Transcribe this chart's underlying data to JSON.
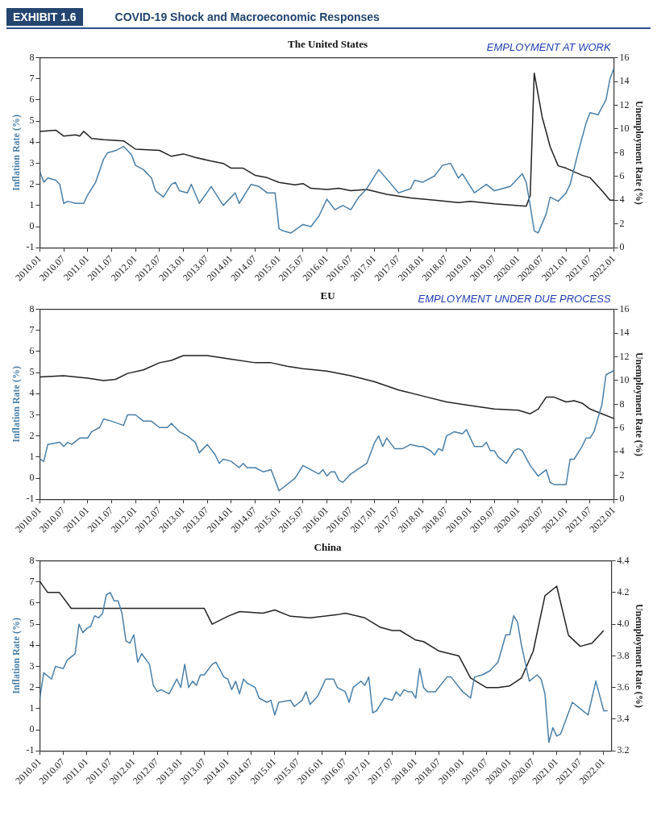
{
  "chart_data": [
    {
      "type": "other",
      "title": "COVID-19 Shock and Macroeconomic Responses",
      "annotations": [
        "EXHIBIT 1.6"
      ]
    },
    {
      "type": "line",
      "title": "The United States",
      "ylabel": "Inflation Rate (%)",
      "y2label": "Unemployment Rate (%)",
      "annotations": [
        "EMPLOYMENT AT WORK"
      ],
      "xlim": [
        "2010-01",
        "2022-01"
      ],
      "ylim": [
        -1,
        8
      ],
      "yticks": [
        -1,
        0,
        1,
        2,
        3,
        4,
        5,
        6,
        7,
        8
      ],
      "y2lim": [
        0,
        16
      ],
      "y2ticks": [
        0,
        2,
        4,
        6,
        8,
        10,
        12,
        14,
        16
      ],
      "xticks": [
        {
          "value": "2010-01",
          "label": "2010.01"
        },
        {
          "value": "2010-07",
          "label": "2010.07"
        },
        {
          "value": "2011-01",
          "label": "2011.01"
        },
        {
          "value": "2011-07",
          "label": "2011.07"
        },
        {
          "value": "2012-01",
          "label": "2012.01"
        },
        {
          "value": "2012-07",
          "label": "2012.07"
        },
        {
          "value": "2013-01",
          "label": "2013.01"
        },
        {
          "value": "2013-07",
          "label": "2013.07"
        },
        {
          "value": "2014-01",
          "label": "2014.01"
        },
        {
          "value": "2014-07",
          "label": "2014.07"
        },
        {
          "value": "2015-01",
          "label": "2015.01"
        },
        {
          "value": "2015-07",
          "label": "2015.07"
        },
        {
          "value": "2016-01",
          "label": "2016.01"
        },
        {
          "value": "2016-07",
          "label": "2016.07"
        },
        {
          "value": "2017-01",
          "label": "2017.01"
        },
        {
          "value": "2017-07",
          "label": "2017.07"
        },
        {
          "value": "2018-01",
          "label": "2018.01"
        },
        {
          "value": "2018-07",
          "label": "2018.07"
        },
        {
          "value": "2019-01",
          "label": "2019.01"
        },
        {
          "value": "2019-07",
          "label": "2019.07"
        },
        {
          "value": "2020-01",
          "label": "2020.01"
        },
        {
          "value": "2020-07",
          "label": "2020.07"
        },
        {
          "value": "2021-01",
          "label": "2021.01"
        },
        {
          "value": "2021-07",
          "label": "2021.07"
        },
        {
          "value": "2022-01",
          "label": "2022.01"
        }
      ],
      "series": [
        {
          "color": "#4a7fa8",
          "x": [
            "2010-01",
            "2010-02",
            "2010-03",
            "2010-05",
            "2010-06",
            "2010-07",
            "2010-08",
            "2010-10",
            "2010-12",
            "2011-01",
            "2011-03",
            "2011-05",
            "2011-06",
            "2011-08",
            "2011-10",
            "2011-12",
            "2012-01",
            "2012-03",
            "2012-05",
            "2012-06",
            "2012-08",
            "2012-10",
            "2012-11",
            "2012-12",
            "2013-02",
            "2013-03",
            "2013-05",
            "2013-08",
            "2013-11",
            "2014-02",
            "2014-03",
            "2014-06",
            "2014-08",
            "2014-10",
            "2014-12",
            "2015-01",
            "2015-02",
            "2015-04",
            "2015-07",
            "2015-09",
            "2015-11",
            "2016-01",
            "2016-03",
            "2016-05",
            "2016-07",
            "2016-09",
            "2016-11",
            "2017-02",
            "2017-07",
            "2017-10",
            "2017-11",
            "2018-01",
            "2018-04",
            "2018-06",
            "2018-08",
            "2018-10",
            "2018-11",
            "2019-02",
            "2019-05",
            "2019-07",
            "2019-09",
            "2019-11",
            "2020-02",
            "2020-03",
            "2020-04",
            "2020-05",
            "2020-06",
            "2020-08",
            "2020-09",
            "2020-11",
            "2021-01",
            "2021-02",
            "2021-04",
            "2021-06",
            "2021-07",
            "2021-09",
            "2021-11",
            "2021-12",
            "2022-01"
          ],
          "values": [
            2.6,
            2.1,
            2.3,
            2.2,
            2.0,
            1.1,
            1.2,
            1.1,
            1.1,
            1.5,
            2.1,
            3.2,
            3.5,
            3.6,
            3.8,
            3.4,
            2.9,
            2.7,
            2.3,
            1.7,
            1.4,
            2.0,
            2.1,
            1.7,
            1.6,
            2.0,
            1.1,
            1.9,
            1.0,
            1.6,
            1.1,
            2.0,
            1.9,
            1.6,
            1.6,
            -0.1,
            -0.2,
            -0.3,
            0.1,
            0.0,
            0.5,
            1.3,
            0.8,
            1.0,
            0.8,
            1.4,
            1.8,
            2.7,
            1.6,
            1.8,
            2.2,
            2.1,
            2.4,
            2.9,
            3.0,
            2.3,
            2.5,
            1.6,
            2.0,
            1.7,
            1.8,
            1.9,
            2.5,
            2.1,
            1.0,
            -0.2,
            -0.3,
            0.6,
            1.4,
            1.2,
            1.6,
            2.0,
            3.5,
            4.9,
            5.4,
            5.3,
            6.0,
            7.0,
            7.5
          ]
        },
        {
          "color": "#222222",
          "axis": "y2",
          "x": [
            "2010-01",
            "2010-05",
            "2010-07",
            "2010-10",
            "2010-11",
            "2010-12",
            "2011-02",
            "2011-05",
            "2011-10",
            "2012-01",
            "2012-07",
            "2012-10",
            "2013-01",
            "2013-04",
            "2013-08",
            "2013-11",
            "2014-01",
            "2014-04",
            "2014-07",
            "2014-10",
            "2015-01",
            "2015-05",
            "2015-07",
            "2015-09",
            "2016-01",
            "2016-04",
            "2016-07",
            "2016-11",
            "2017-04",
            "2017-10",
            "2018-04",
            "2018-10",
            "2019-01",
            "2019-07",
            "2019-11",
            "2020-03",
            "2020-04",
            "2020-05",
            "2020-07",
            "2020-09",
            "2020-11",
            "2021-01",
            "2021-05",
            "2021-07",
            "2021-10",
            "2021-12",
            "2022-01"
          ],
          "values": [
            9.8,
            9.9,
            9.4,
            9.5,
            9.4,
            9.8,
            9.2,
            9.1,
            9.0,
            8.3,
            8.2,
            7.7,
            7.9,
            7.6,
            7.3,
            7.1,
            6.7,
            6.7,
            6.1,
            5.9,
            5.5,
            5.3,
            5.4,
            5.0,
            4.9,
            5.0,
            4.8,
            4.9,
            4.5,
            4.2,
            4.0,
            3.8,
            3.9,
            3.7,
            3.6,
            3.5,
            4.4,
            14.7,
            11.0,
            8.5,
            6.9,
            6.7,
            6.1,
            5.9,
            4.8,
            4.0,
            4.0
          ]
        }
      ]
    },
    {
      "type": "line",
      "title": "EU",
      "ylabel": "Inflation Rate (%)",
      "y2label": "Unemployment Rate (%)",
      "annotations": [
        "EMPLOYMENT UNDER DUE PROCESS"
      ],
      "xlim": [
        "2010-01",
        "2022-01"
      ],
      "ylim": [
        -1,
        8
      ],
      "yticks": [
        -1,
        0,
        1,
        2,
        3,
        4,
        5,
        6,
        7,
        8
      ],
      "y2lim": [
        0,
        16
      ],
      "y2ticks": [
        0,
        2,
        4,
        6,
        8,
        10,
        12,
        14,
        16
      ],
      "xticks": [
        {
          "value": "2010-01",
          "label": "2010.01"
        },
        {
          "value": "2010-07",
          "label": "2010.07"
        },
        {
          "value": "2011-01",
          "label": "2011.01"
        },
        {
          "value": "2011-07",
          "label": "2011.07"
        },
        {
          "value": "2012-01",
          "label": "2012.01"
        },
        {
          "value": "2012-07",
          "label": "2012.07"
        },
        {
          "value": "2013-01",
          "label": "2013.01"
        },
        {
          "value": "2013-07",
          "label": "2013.07"
        },
        {
          "value": "2014-01",
          "label": "2014.01"
        },
        {
          "value": "2014-07",
          "label": "2014.07"
        },
        {
          "value": "2015-01",
          "label": "2015.01"
        },
        {
          "value": "2015-07",
          "label": "2015.07"
        },
        {
          "value": "2016-01",
          "label": "2016.01"
        },
        {
          "value": "2016-07",
          "label": "2016.07"
        },
        {
          "value": "2017-01",
          "label": "2017.01"
        },
        {
          "value": "2017-07",
          "label": "2017.07"
        },
        {
          "value": "2018-01",
          "label": "2018.01"
        },
        {
          "value": "2018-07",
          "label": "2018.07"
        },
        {
          "value": "2019-01",
          "label": "2019.01"
        },
        {
          "value": "2019-07",
          "label": "2019.07"
        },
        {
          "value": "2020-01",
          "label": "2020.01"
        },
        {
          "value": "2020-07",
          "label": "2020.07"
        },
        {
          "value": "2021-01",
          "label": "2021.01"
        },
        {
          "value": "2021-07",
          "label": "2021.07"
        },
        {
          "value": "2022-01",
          "label": "2022.01"
        }
      ],
      "series": [
        {
          "color": "#4a7fa8",
          "x": [
            "2010-01",
            "2010-02",
            "2010-03",
            "2010-06",
            "2010-07",
            "2010-08",
            "2010-09",
            "2010-11",
            "2011-01",
            "2011-02",
            "2011-04",
            "2011-05",
            "2011-07",
            "2011-10",
            "2011-11",
            "2012-01",
            "2012-03",
            "2012-05",
            "2012-07",
            "2012-09",
            "2012-10",
            "2012-12",
            "2013-02",
            "2013-04",
            "2013-05",
            "2013-07",
            "2013-09",
            "2013-10",
            "2013-11",
            "2014-01",
            "2014-03",
            "2014-04",
            "2014-05",
            "2014-07",
            "2014-09",
            "2014-11",
            "2015-01",
            "2015-05",
            "2015-07",
            "2015-09",
            "2015-11",
            "2015-12",
            "2016-01",
            "2016-02",
            "2016-03",
            "2016-04",
            "2016-05",
            "2016-07",
            "2016-11",
            "2017-01",
            "2017-02",
            "2017-03",
            "2017-04",
            "2017-06",
            "2017-08",
            "2017-10",
            "2017-12",
            "2018-01",
            "2018-03",
            "2018-04",
            "2018-05",
            "2018-06",
            "2018-07",
            "2018-09",
            "2018-11",
            "2018-12",
            "2019-02",
            "2019-04",
            "2019-05",
            "2019-06",
            "2019-07",
            "2019-08",
            "2019-10",
            "2019-12",
            "2020-01",
            "2020-02",
            "2020-04",
            "2020-06",
            "2020-08",
            "2020-09",
            "2020-10",
            "2021-01",
            "2021-02",
            "2021-03",
            "2021-05",
            "2021-06",
            "2021-07",
            "2021-08",
            "2021-10",
            "2021-11",
            "2022-01"
          ],
          "values": [
            0.9,
            0.8,
            1.6,
            1.7,
            1.5,
            1.7,
            1.6,
            1.9,
            1.9,
            2.2,
            2.4,
            2.8,
            2.7,
            2.5,
            3.0,
            3.0,
            2.7,
            2.7,
            2.4,
            2.4,
            2.6,
            2.2,
            2.0,
            1.7,
            1.2,
            1.6,
            1.1,
            0.7,
            0.9,
            0.8,
            0.5,
            0.7,
            0.5,
            0.5,
            0.3,
            0.4,
            -0.6,
            0.0,
            0.6,
            0.4,
            0.2,
            0.4,
            0.1,
            0.3,
            0.3,
            -0.1,
            -0.2,
            0.2,
            0.7,
            1.7,
            2.0,
            1.5,
            1.9,
            1.4,
            1.4,
            1.6,
            1.5,
            1.5,
            1.3,
            1.1,
            1.4,
            1.3,
            2.0,
            2.2,
            2.1,
            2.3,
            1.5,
            1.5,
            1.7,
            1.3,
            1.3,
            1.0,
            0.7,
            1.3,
            1.4,
            1.3,
            0.6,
            0.1,
            0.4,
            -0.2,
            -0.3,
            -0.3,
            0.9,
            0.9,
            1.5,
            1.9,
            1.9,
            2.2,
            3.5,
            4.9,
            5.1
          ]
        },
        {
          "color": "#222222",
          "axis": "y2",
          "x": [
            "2010-01",
            "2010-07",
            "2011-01",
            "2011-05",
            "2011-08",
            "2011-11",
            "2012-03",
            "2012-07",
            "2012-10",
            "2013-01",
            "2013-07",
            "2014-01",
            "2014-07",
            "2014-11",
            "2015-03",
            "2015-07",
            "2015-10",
            "2016-01",
            "2016-07",
            "2017-01",
            "2017-07",
            "2018-01",
            "2018-07",
            "2019-01",
            "2019-07",
            "2020-01",
            "2020-04",
            "2020-06",
            "2020-08",
            "2020-10",
            "2021-01",
            "2021-03",
            "2021-05",
            "2021-07",
            "2021-10",
            "2022-01"
          ],
          "values": [
            10.3,
            10.4,
            10.2,
            10.0,
            10.1,
            10.6,
            10.9,
            11.5,
            11.7,
            12.1,
            12.1,
            11.8,
            11.5,
            11.5,
            11.2,
            11.0,
            10.9,
            10.8,
            10.4,
            9.9,
            9.2,
            8.7,
            8.2,
            7.9,
            7.6,
            7.5,
            7.2,
            7.6,
            8.6,
            8.6,
            8.2,
            8.3,
            8.1,
            7.6,
            7.2,
            6.8
          ]
        }
      ]
    },
    {
      "type": "line",
      "title": "China",
      "ylabel": "Inflation Rate (%)",
      "y2label": "Unemployment Rate (%)",
      "xlim": [
        "2010-01",
        "2022-03"
      ],
      "ylim": [
        -1,
        8
      ],
      "yticks": [
        -1,
        0,
        1,
        2,
        3,
        4,
        5,
        6,
        7,
        8
      ],
      "y2lim": [
        3.2,
        4.4
      ],
      "y2ticks": [
        3.2,
        3.4,
        3.6,
        3.8,
        {
          "value": 4,
          "label": "4.0"
        },
        4.2,
        4.4
      ],
      "xticks": [
        {
          "value": "2010-01",
          "label": "2010.01"
        },
        {
          "value": "2010-07",
          "label": "2010.07"
        },
        {
          "value": "2011-01",
          "label": "2011.01"
        },
        {
          "value": "2011-07",
          "label": "2011.07"
        },
        {
          "value": "2012-01",
          "label": "2012.01"
        },
        {
          "value": "2012-07",
          "label": "2012.07"
        },
        {
          "value": "2013-01",
          "label": "2013.01"
        },
        {
          "value": "2013-07",
          "label": "2013.07"
        },
        {
          "value": "2014-01",
          "label": "2014.01"
        },
        {
          "value": "2014-07",
          "label": "2014.07"
        },
        {
          "value": "2015-01",
          "label": "2015.01"
        },
        {
          "value": "2015-07",
          "label": "2015.07"
        },
        {
          "value": "2016-01",
          "label": "2016.01"
        },
        {
          "value": "2016-07",
          "label": "2016.07"
        },
        {
          "value": "2017-01",
          "label": "2017.01"
        },
        {
          "value": "2017-07",
          "label": "2017.07"
        },
        {
          "value": "2018-01",
          "label": "2018.01"
        },
        {
          "value": "2018-07",
          "label": "2018.07"
        },
        {
          "value": "2019-01",
          "label": "2019.01"
        },
        {
          "value": "2019-07",
          "label": "2019.07"
        },
        {
          "value": "2020-01",
          "label": "2020.01"
        },
        {
          "value": "2020-07",
          "label": "2020.07"
        },
        {
          "value": "2021-01",
          "label": "2021.01"
        },
        {
          "value": "2021-07",
          "label": "2021.07"
        },
        {
          "value": "2022-01",
          "label": "2022.01"
        }
      ],
      "series": [
        {
          "color": "#4a7fa8",
          "x": [
            "2010-01",
            "2010-02",
            "2010-04",
            "2010-05",
            "2010-07",
            "2010-08",
            "2010-10",
            "2010-11",
            "2010-12",
            "2011-01",
            "2011-02",
            "2011-03",
            "2011-04",
            "2011-05",
            "2011-06",
            "2011-07",
            "2011-08",
            "2011-09",
            "2011-10",
            "2011-11",
            "2011-12",
            "2012-01",
            "2012-02",
            "2012-03",
            "2012-05",
            "2012-06",
            "2012-07",
            "2012-08",
            "2012-10",
            "2012-12",
            "2013-01",
            "2013-02",
            "2013-03",
            "2013-04",
            "2013-05",
            "2013-06",
            "2013-07",
            "2013-09",
            "2013-10",
            "2013-12",
            "2014-01",
            "2014-02",
            "2014-03",
            "2014-04",
            "2014-05",
            "2014-06",
            "2014-08",
            "2014-09",
            "2014-11",
            "2014-12",
            "2015-01",
            "2015-02",
            "2015-05",
            "2015-06",
            "2015-08",
            "2015-09",
            "2015-10",
            "2015-12",
            "2016-02",
            "2016-04",
            "2016-05",
            "2016-07",
            "2016-08",
            "2016-09",
            "2016-11",
            "2016-12",
            "2017-01",
            "2017-02",
            "2017-03",
            "2017-05",
            "2017-07",
            "2017-08",
            "2017-09",
            "2017-10",
            "2017-11",
            "2017-12",
            "2018-01",
            "2018-02",
            "2018-03",
            "2018-04",
            "2018-06",
            "2018-09",
            "2018-10",
            "2019-01",
            "2019-03",
            "2019-04",
            "2019-06",
            "2019-08",
            "2019-10",
            "2019-12",
            "2020-01",
            "2020-02",
            "2020-03",
            "2020-04",
            "2020-06",
            "2020-08",
            "2020-09",
            "2020-10",
            "2020-11",
            "2020-12",
            "2021-01",
            "2021-02",
            "2021-05",
            "2021-07",
            "2021-09",
            "2021-11",
            "2022-01",
            "2022-02"
          ],
          "values": [
            1.5,
            2.7,
            2.4,
            3.0,
            2.9,
            3.3,
            3.6,
            5.0,
            4.6,
            4.8,
            4.9,
            5.4,
            5.3,
            5.5,
            6.4,
            6.5,
            6.1,
            6.1,
            5.5,
            4.2,
            4.1,
            4.5,
            3.2,
            3.6,
            3.1,
            2.1,
            1.8,
            1.9,
            1.7,
            2.4,
            2.0,
            3.1,
            2.0,
            2.3,
            2.1,
            2.6,
            2.6,
            3.1,
            3.2,
            2.5,
            2.4,
            1.9,
            2.3,
            1.7,
            2.4,
            2.2,
            2.0,
            1.5,
            1.3,
            1.4,
            0.7,
            1.3,
            1.4,
            1.1,
            1.4,
            1.8,
            1.2,
            1.6,
            2.4,
            2.4,
            2.0,
            1.8,
            1.3,
            2.0,
            2.3,
            2.1,
            2.5,
            0.8,
            0.9,
            1.5,
            1.4,
            1.8,
            1.6,
            1.9,
            1.8,
            1.8,
            1.5,
            2.9,
            2.0,
            1.8,
            1.8,
            2.5,
            2.5,
            1.8,
            1.5,
            2.5,
            2.6,
            2.8,
            3.2,
            4.5,
            4.5,
            5.4,
            5.1,
            4.0,
            2.3,
            2.6,
            2.4,
            1.7,
            -0.6,
            0.1,
            -0.3,
            -0.2,
            1.3,
            1.0,
            0.7,
            2.3,
            0.9,
            0.9
          ]
        },
        {
          "color": "#222222",
          "axis": "y2",
          "x": [
            "2010-01",
            "2010-03",
            "2010-06",
            "2010-09",
            "2013-07",
            "2013-09",
            "2014-01",
            "2014-04",
            "2014-10",
            "2015-01",
            "2015-05",
            "2015-10",
            "2016-05",
            "2016-07",
            "2016-12",
            "2017-04",
            "2017-07",
            "2017-09",
            "2018-01",
            "2018-03",
            "2018-07",
            "2018-12",
            "2019-03",
            "2019-07",
            "2019-10",
            "2020-01",
            "2020-04",
            "2020-07",
            "2020-10",
            "2021-01",
            "2021-04",
            "2021-07",
            "2021-10",
            "2022-01"
          ],
          "values": [
            4.27,
            4.2,
            4.2,
            4.1,
            4.1,
            4.0,
            4.05,
            4.08,
            4.07,
            4.09,
            4.05,
            4.04,
            4.06,
            4.07,
            4.04,
            3.98,
            3.96,
            3.96,
            3.9,
            3.89,
            3.83,
            3.8,
            3.66,
            3.6,
            3.6,
            3.61,
            3.66,
            3.83,
            4.18,
            4.24,
            3.93,
            3.86,
            3.88,
            3.96
          ]
        }
      ]
    }
  ]
}
